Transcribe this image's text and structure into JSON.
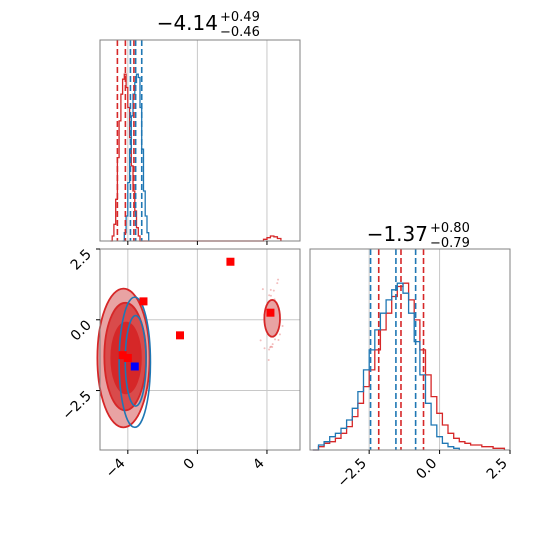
{
  "chart_data": {
    "type": "corner",
    "grid": true,
    "colors": {
      "red": "#d62728",
      "blue": "#1f77b4",
      "red_fill": "#e8a3a3",
      "red_fill_dark": "#d94b4b",
      "marker_red": "#ff0000",
      "marker_blue": "#0000ff",
      "grid": "#c8c8c8",
      "axis": "#808080"
    },
    "params": [
      {
        "title_main": "−4.14",
        "title_sup": "+0.49",
        "title_sub": "−0.46",
        "range": [
          -5.6,
          5.9
        ],
        "ticks": [
          -4,
          0,
          4
        ],
        "tick_labels": [
          "−4",
          "0",
          "4"
        ]
      },
      {
        "title_main": "−1.37",
        "title_sup": "+0.80",
        "title_sub": "−0.79",
        "range": [
          -4.6,
          2.5
        ],
        "ticks": [
          -2.5,
          0,
          2.5
        ],
        "tick_labels": [
          "−2.5",
          "0.0",
          "2.5"
        ]
      }
    ],
    "marginal_1": {
      "red_quantiles": [
        -4.6,
        -4.14,
        -3.65
      ],
      "blue_quantiles": [
        -3.85,
        -3.55,
        -3.2
      ],
      "red_hist": {
        "bins": [
          [
            -5.0,
            0.0
          ],
          [
            -4.9,
            0.03
          ],
          [
            -4.8,
            0.1
          ],
          [
            -4.7,
            0.25
          ],
          [
            -4.6,
            0.5
          ],
          [
            -4.5,
            0.72
          ],
          [
            -4.4,
            0.88
          ],
          [
            -4.3,
            0.97
          ],
          [
            -4.2,
            1.0
          ],
          [
            -4.1,
            0.92
          ],
          [
            -4.0,
            0.8
          ],
          [
            -3.9,
            0.62
          ],
          [
            -3.8,
            0.45
          ],
          [
            -3.7,
            0.3
          ],
          [
            -3.6,
            0.18
          ],
          [
            -3.5,
            0.08
          ],
          [
            -3.4,
            0.03
          ],
          [
            -3.3,
            0.0
          ],
          [
            3.6,
            0.0
          ],
          [
            3.8,
            0.01
          ],
          [
            4.0,
            0.02
          ],
          [
            4.2,
            0.03
          ],
          [
            4.4,
            0.025
          ],
          [
            4.6,
            0.015
          ],
          [
            4.8,
            0.0
          ]
        ]
      },
      "blue_hist": {
        "bins": [
          [
            -4.3,
            0.0
          ],
          [
            -4.2,
            0.05
          ],
          [
            -4.1,
            0.15
          ],
          [
            -4.0,
            0.35
          ],
          [
            -3.9,
            0.55
          ],
          [
            -3.8,
            0.75
          ],
          [
            -3.7,
            0.88
          ],
          [
            -3.6,
            0.95
          ],
          [
            -3.5,
            1.0
          ],
          [
            -3.4,
            0.98
          ],
          [
            -3.3,
            0.8
          ],
          [
            -3.2,
            0.55
          ],
          [
            -3.1,
            0.3
          ],
          [
            -3.0,
            0.15
          ],
          [
            -2.9,
            0.05
          ],
          [
            -2.8,
            0.0
          ]
        ]
      }
    },
    "marginal_2": {
      "red_quantiles": [
        -2.16,
        -1.37,
        -0.57
      ],
      "blue_quantiles": [
        -2.45,
        -1.55,
        -0.85
      ],
      "red_hist": {
        "bins": [
          [
            -4.5,
            0.0
          ],
          [
            -4.3,
            0.02
          ],
          [
            -4.1,
            0.04
          ],
          [
            -3.9,
            0.05
          ],
          [
            -3.7,
            0.07
          ],
          [
            -3.5,
            0.1
          ],
          [
            -3.3,
            0.14
          ],
          [
            -3.1,
            0.2
          ],
          [
            -2.9,
            0.28
          ],
          [
            -2.7,
            0.38
          ],
          [
            -2.5,
            0.48
          ],
          [
            -2.3,
            0.6
          ],
          [
            -2.1,
            0.72
          ],
          [
            -1.9,
            0.82
          ],
          [
            -1.7,
            0.92
          ],
          [
            -1.5,
            0.98
          ],
          [
            -1.3,
            1.0
          ],
          [
            -1.1,
            0.9
          ],
          [
            -0.9,
            0.78
          ],
          [
            -0.7,
            0.6
          ],
          [
            -0.5,
            0.45
          ],
          [
            -0.3,
            0.32
          ],
          [
            -0.1,
            0.22
          ],
          [
            0.1,
            0.15
          ],
          [
            0.3,
            0.1
          ],
          [
            0.5,
            0.07
          ],
          [
            0.7,
            0.05
          ],
          [
            0.9,
            0.04
          ],
          [
            1.1,
            0.03
          ],
          [
            1.3,
            0.03
          ],
          [
            1.5,
            0.02
          ],
          [
            1.7,
            0.02
          ],
          [
            1.9,
            0.01
          ],
          [
            2.1,
            0.01
          ],
          [
            2.3,
            0.0
          ]
        ]
      },
      "blue_hist": {
        "bins": [
          [
            -4.5,
            0.0
          ],
          [
            -4.3,
            0.03
          ],
          [
            -4.1,
            0.05
          ],
          [
            -3.9,
            0.08
          ],
          [
            -3.7,
            0.1
          ],
          [
            -3.5,
            0.13
          ],
          [
            -3.3,
            0.18
          ],
          [
            -3.1,
            0.25
          ],
          [
            -2.9,
            0.35
          ],
          [
            -2.7,
            0.48
          ],
          [
            -2.5,
            0.6
          ],
          [
            -2.3,
            0.72
          ],
          [
            -2.1,
            0.82
          ],
          [
            -1.9,
            0.9
          ],
          [
            -1.7,
            0.96
          ],
          [
            -1.5,
            1.0
          ],
          [
            -1.3,
            0.94
          ],
          [
            -1.1,
            0.82
          ],
          [
            -0.9,
            0.65
          ],
          [
            -0.7,
            0.45
          ],
          [
            -0.5,
            0.28
          ],
          [
            -0.3,
            0.15
          ],
          [
            -0.1,
            0.08
          ],
          [
            0.1,
            0.04
          ],
          [
            0.3,
            0.02
          ],
          [
            0.5,
            0.01
          ],
          [
            0.7,
            0.0
          ]
        ]
      }
    },
    "joint": {
      "red_contours": [
        {
          "cx": -4.25,
          "cy": -1.35,
          "rx": 1.5,
          "ry": 2.45,
          "level": "outer"
        },
        {
          "cx": -4.15,
          "cy": -1.3,
          "rx": 1.2,
          "ry": 1.9,
          "level": "mid"
        },
        {
          "cx": -4.1,
          "cy": -1.35,
          "rx": 0.85,
          "ry": 1.25,
          "level": "inner"
        }
      ],
      "red_secondary": {
        "cx": 4.3,
        "cy": 0.05,
        "rx": 0.45,
        "ry": 0.65
      },
      "blue_contours": [
        {
          "cx": -3.6,
          "cy": -1.5,
          "rx": 0.9,
          "ry": 2.3
        },
        {
          "cx": -3.55,
          "cy": -1.45,
          "rx": 0.6,
          "ry": 1.6
        }
      ],
      "red_markers": [
        {
          "x": -3.1,
          "y": 0.65
        },
        {
          "x": -1.0,
          "y": -0.55
        },
        {
          "x": 1.9,
          "y": 2.05
        },
        {
          "x": 4.2,
          "y": 0.25
        },
        {
          "x": -4.3,
          "y": -1.25
        },
        {
          "x": -4.0,
          "y": -1.35
        }
      ],
      "blue_markers": [
        {
          "x": -3.6,
          "y": -1.65
        }
      ]
    }
  }
}
